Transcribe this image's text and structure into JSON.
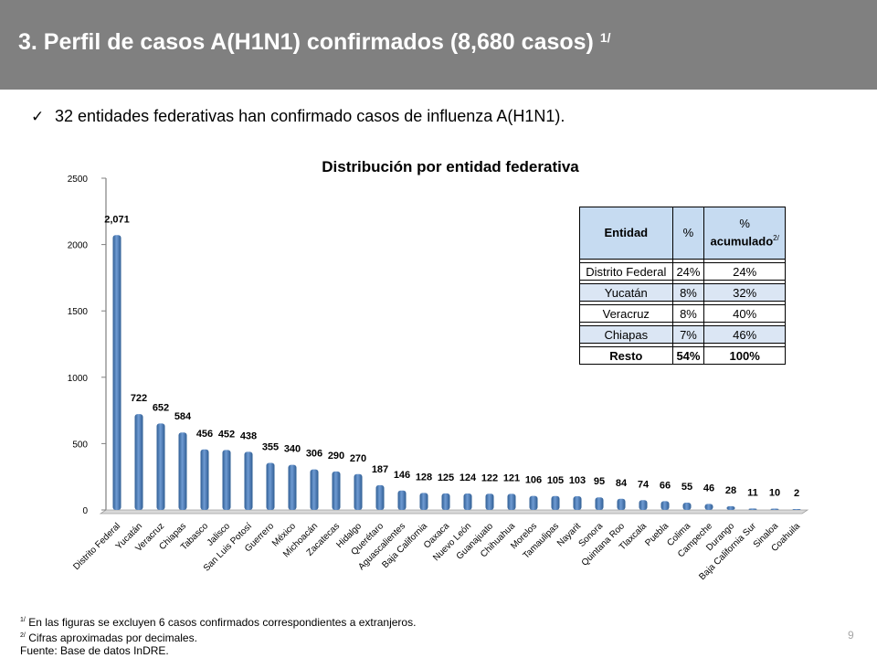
{
  "header": {
    "title": "3. Perfil de casos A(H1N1) confirmados (8,680 casos)",
    "title_note": "1/"
  },
  "bullet": "32 entidades federativas han confirmado casos de influenza A(H1N1).",
  "table": {
    "col_entidad": "Entidad",
    "col_pct": "%",
    "col_acum_pct": "%",
    "col_acum": "acumulado",
    "col_acum_note": "2/",
    "rows": [
      {
        "entidad": "Distrito Federal",
        "pct": "24%",
        "acum": "24%"
      },
      {
        "entidad": "Yucatán",
        "pct": "8%",
        "acum": "32%"
      },
      {
        "entidad": "Veracruz",
        "pct": "8%",
        "acum": "40%"
      },
      {
        "entidad": "Chiapas",
        "pct": "7%",
        "acum": "46%"
      },
      {
        "entidad": "Resto",
        "pct": "54%",
        "acum": "100%"
      }
    ]
  },
  "notes": {
    "n1_mark": "1/",
    "n1": "En las figuras se excluyen 6 casos confirmados correspondientes a extranjeros.",
    "n2_mark": "2/",
    "n2": "Cifras aproximadas por decimales.",
    "source": "Fuente: Base de datos InDRE."
  },
  "page_number": "9",
  "chart_data": {
    "type": "bar",
    "title": "Distribución por entidad federativa",
    "xlabel": "",
    "ylabel": "",
    "ylim": [
      0,
      2500
    ],
    "yticks": [
      0,
      500,
      1000,
      1500,
      2000,
      2500
    ],
    "grid": false,
    "bar_color": "#4f81bd",
    "categories": [
      "Distrito Federal",
      "Yucatán",
      "Veracruz",
      "Chiapas",
      "Tabasco",
      "Jalisco",
      "San Luis Potosí",
      "Guerrero",
      "México",
      "Michoacán",
      "Zacatecas",
      "Hidalgo",
      "Querétaro",
      "Aguascalientes",
      "Baja California",
      "Oaxaca",
      "Nuevo León",
      "Guanajuato",
      "Chihuahua",
      "Morelos",
      "Tamaulipas",
      "Nayarit",
      "Sonora",
      "Quintana Roo",
      "Tlaxcala",
      "Puebla",
      "Colima",
      "Campeche",
      "Durango",
      "Baja California Sur",
      "Sinaloa",
      "Coahuila"
    ],
    "values": [
      2071,
      722,
      652,
      584,
      456,
      452,
      438,
      355,
      340,
      306,
      290,
      270,
      187,
      146,
      128,
      125,
      124,
      122,
      121,
      106,
      105,
      103,
      95,
      84,
      74,
      66,
      55,
      46,
      28,
      11,
      10,
      2
    ],
    "data_labels": [
      "2,071",
      "722",
      "652",
      "584",
      "456",
      "452",
      "438",
      "355",
      "340",
      "306",
      "290",
      "270",
      "187",
      "146",
      "128",
      "125",
      "124",
      "122",
      "121",
      "106",
      "105",
      "103",
      "95",
      "84",
      "74",
      "66",
      "55",
      "46",
      "28",
      "11",
      "10",
      "2"
    ]
  }
}
